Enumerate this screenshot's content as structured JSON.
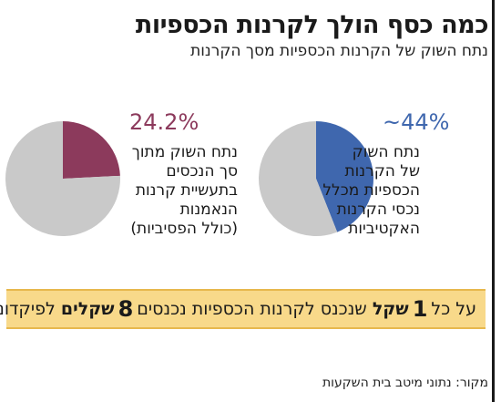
{
  "header": {
    "title": "כמה כסף הולך לקרנות הכספיות",
    "subtitle": "נתח השוק של הקרנות הכספיות מסך הקרנות"
  },
  "colors": {
    "right_slice": "#3f67ae",
    "left_slice": "#8c3a5c",
    "rest": "#c9c9c9",
    "banner_bg": "#f8d98a"
  },
  "chart_data": [
    {
      "type": "pie",
      "slices": [
        {
          "label": "נתח השוק של הקרנות הכספיות מכלל נכסי הקרנות האקטיביות",
          "value": 44
        },
        {
          "label": "",
          "value": 56
        }
      ],
      "display_value": "~44%",
      "description": [
        "נתח השוק",
        "של הקרנות",
        "הכספיות מכלל",
        "נכסי הקרנות",
        "האקטיביות"
      ]
    },
    {
      "type": "pie",
      "slices": [
        {
          "label": "נתח השוק מתוך סך הנכסים בתעשיית קרנות הנאמנות (כולל הפסיביות)",
          "value": 24.2
        },
        {
          "label": "",
          "value": 75.8
        }
      ],
      "display_value": "24.2%",
      "description": [
        "נתח השוק מתוך",
        "סך הנכסים",
        "בתעשיית קרנות",
        "הנאמנות",
        "(כולל הפסיביות)"
      ]
    }
  ],
  "banner": {
    "part1": "על כל",
    "num1": "1",
    "word1": "שקל",
    "part2": "שנכנס לקרנות הכספיות נכנסים",
    "num2": "8",
    "word2": "שקלים",
    "part3": "לפיקדונות"
  },
  "source": "מקור: נתוני מיטב בית השקעות"
}
